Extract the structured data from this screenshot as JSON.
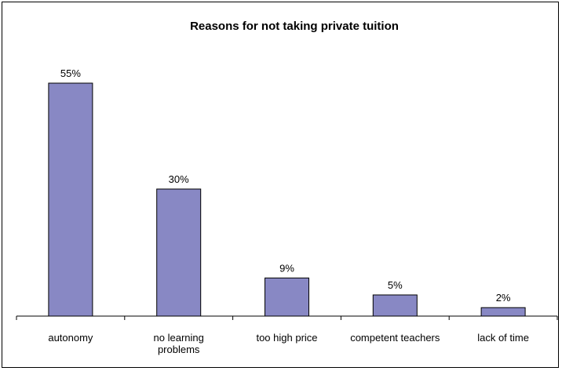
{
  "chart_data": {
    "type": "bar",
    "title": "Reasons for not taking private tuition",
    "xlabel": "",
    "ylabel": "",
    "categories": [
      "autonomy",
      "no learning problems",
      "too high price",
      "competent teachers",
      "lack of time"
    ],
    "category_lines": [
      [
        "autonomy"
      ],
      [
        "no learning",
        "problems"
      ],
      [
        "too high price"
      ],
      [
        "competent teachers"
      ],
      [
        "lack of time"
      ]
    ],
    "values": [
      55,
      30,
      9,
      5,
      2
    ],
    "data_labels": [
      "55%",
      "30%",
      "9%",
      "5%",
      "2%"
    ],
    "ylim": [
      0,
      60
    ],
    "grid": false,
    "legend": "none",
    "bar_color": "#8888c4",
    "bar_edge_color": "#000000"
  }
}
